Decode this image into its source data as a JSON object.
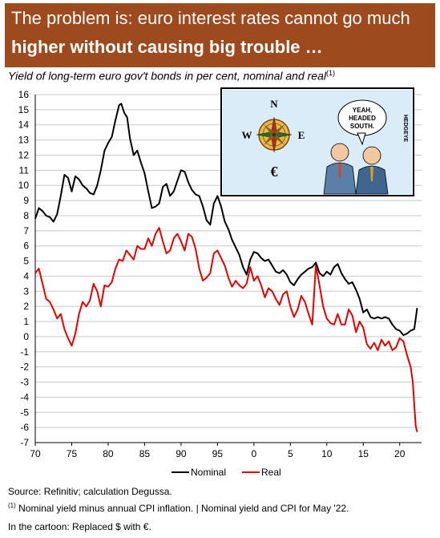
{
  "header": {
    "line1": "The problem is: euro interest rates cannot go much",
    "line2": "higher without causing big trouble …"
  },
  "subtitle": {
    "text": "Yield of long-term euro gov't bonds in per cent, nominal and real",
    "footnote_marker": "(1)"
  },
  "cartoon": {
    "compass_n": "N",
    "compass_e": "E",
    "compass_w": "W",
    "euro_symbol": "€",
    "speech": [
      "YEAH,",
      "HEADED",
      "SOUTH."
    ],
    "signature": "HEDGEYE"
  },
  "legend": {
    "nominal": "Nominal",
    "real": "Real"
  },
  "footer": {
    "source": "Source: Refinitiv; calculation Degussa.",
    "note_marker": "(1)",
    "note": "Nominal yield minus annual CPI inflation. | Nominal yield and CPI for May '22.",
    "cartoon_note": "In the cartoon: Replaced $ with €."
  },
  "colors": {
    "banner": "#9c4a1e",
    "nominal": "#000000",
    "real": "#e00000",
    "grid": "#c8c8c8"
  },
  "chart_data": {
    "type": "line",
    "title": "Yield of long-term euro gov't bonds in per cent, nominal and real",
    "xlabel": "",
    "ylabel": "",
    "xlim": [
      1970,
      2023
    ],
    "ylim": [
      -7,
      16
    ],
    "x_ticks": [
      70,
      75,
      80,
      85,
      90,
      95,
      0,
      5,
      10,
      15,
      20
    ],
    "y_ticks": [
      16,
      15,
      14,
      13,
      12,
      11,
      10,
      9,
      8,
      7,
      6,
      5,
      4,
      3,
      2,
      1,
      0,
      -1,
      -2,
      -3,
      -4,
      -5,
      -6,
      -7
    ],
    "grid": true,
    "legend_position": "bottom",
    "series": [
      {
        "name": "Nominal",
        "x": [
          1970.0,
          1970.5,
          1971.0,
          1971.5,
          1972.0,
          1972.5,
          1973.0,
          1973.5,
          1974.0,
          1974.5,
          1975.0,
          1975.5,
          1976.0,
          1976.5,
          1977.0,
          1977.5,
          1978.0,
          1978.5,
          1979.0,
          1979.5,
          1980.0,
          1980.5,
          1981.0,
          1981.5,
          1981.8,
          1982.2,
          1982.6,
          1983.0,
          1983.5,
          1984.0,
          1984.5,
          1985.0,
          1985.5,
          1986.0,
          1986.5,
          1987.0,
          1987.5,
          1988.0,
          1988.5,
          1989.0,
          1989.5,
          1990.0,
          1990.5,
          1991.0,
          1991.5,
          1992.0,
          1992.5,
          1993.0,
          1993.5,
          1994.0,
          1994.5,
          1995.0,
          1995.5,
          1996.0,
          1996.5,
          1997.0,
          1997.5,
          1998.0,
          1998.5,
          1999.0,
          1999.5,
          2000.0,
          2000.5,
          2001.0,
          2001.5,
          2002.0,
          2002.5,
          2003.0,
          2003.5,
          2004.0,
          2004.5,
          2005.0,
          2005.5,
          2006.0,
          2006.5,
          2007.0,
          2007.5,
          2008.0,
          2008.5,
          2009.0,
          2009.5,
          2010.0,
          2010.5,
          2011.0,
          2011.5,
          2012.0,
          2012.5,
          2013.0,
          2013.5,
          2014.0,
          2014.5,
          2015.0,
          2015.5,
          2016.0,
          2016.5,
          2017.0,
          2017.5,
          2018.0,
          2018.5,
          2019.0,
          2019.5,
          2020.0,
          2020.5,
          2021.0,
          2021.5,
          2022.0,
          2022.4
        ],
        "values": [
          7.8,
          8.5,
          8.3,
          8.0,
          7.9,
          7.6,
          8.1,
          9.3,
          10.7,
          10.5,
          9.6,
          10.6,
          10.4,
          10.0,
          9.8,
          9.5,
          9.4,
          10.0,
          11.0,
          12.3,
          12.8,
          13.2,
          14.3,
          15.3,
          15.4,
          14.8,
          14.5,
          13.1,
          12.0,
          12.3,
          11.5,
          10.8,
          9.6,
          8.5,
          8.6,
          8.8,
          9.9,
          10.1,
          9.3,
          9.6,
          10.3,
          11.0,
          10.9,
          10.2,
          9.7,
          9.4,
          9.3,
          8.6,
          7.7,
          7.4,
          8.8,
          9.3,
          8.6,
          7.6,
          7.1,
          6.4,
          5.9,
          5.4,
          4.6,
          4.1,
          5.1,
          5.6,
          5.5,
          5.2,
          5.0,
          5.1,
          4.7,
          4.3,
          4.2,
          4.4,
          4.1,
          3.6,
          3.4,
          3.8,
          4.1,
          4.3,
          4.5,
          4.6,
          4.9,
          4.2,
          4.0,
          4.3,
          4.1,
          4.6,
          4.8,
          4.2,
          3.8,
          3.5,
          3.6,
          3.1,
          2.5,
          1.6,
          1.8,
          1.3,
          1.2,
          1.3,
          1.2,
          1.3,
          1.2,
          0.8,
          0.5,
          0.4,
          0.1,
          0.2,
          0.4,
          0.5,
          1.9
        ]
      },
      {
        "name": "Real",
        "x": [
          1970.0,
          1970.5,
          1971.0,
          1971.5,
          1972.0,
          1972.5,
          1973.0,
          1973.5,
          1974.0,
          1974.5,
          1975.0,
          1975.5,
          1976.0,
          1976.5,
          1977.0,
          1977.5,
          1978.0,
          1978.5,
          1979.0,
          1979.5,
          1980.0,
          1980.5,
          1981.0,
          1981.5,
          1982.0,
          1982.5,
          1983.0,
          1983.5,
          1984.0,
          1984.5,
          1985.0,
          1985.5,
          1986.0,
          1986.5,
          1987.0,
          1987.5,
          1988.0,
          1988.5,
          1989.0,
          1989.5,
          1990.0,
          1990.5,
          1991.0,
          1991.5,
          1992.0,
          1992.5,
          1993.0,
          1993.5,
          1994.0,
          1994.5,
          1995.0,
          1995.5,
          1996.0,
          1996.5,
          1997.0,
          1997.5,
          1998.0,
          1998.5,
          1999.0,
          1999.5,
          2000.0,
          2000.5,
          2001.0,
          2001.5,
          2002.0,
          2002.5,
          2003.0,
          2003.5,
          2004.0,
          2004.5,
          2005.0,
          2005.5,
          2006.0,
          2006.5,
          2007.0,
          2007.5,
          2008.0,
          2008.5,
          2009.0,
          2009.5,
          2010.0,
          2010.5,
          2011.0,
          2011.5,
          2012.0,
          2012.5,
          2013.0,
          2013.5,
          2014.0,
          2014.5,
          2015.0,
          2015.5,
          2016.0,
          2016.5,
          2017.0,
          2017.5,
          2018.0,
          2018.5,
          2019.0,
          2019.5,
          2020.0,
          2020.5,
          2021.0,
          2021.5,
          2021.8,
          2022.0,
          2022.2,
          2022.4
        ],
        "values": [
          4.2,
          4.5,
          3.5,
          2.5,
          2.3,
          1.8,
          1.2,
          1.5,
          0.5,
          -0.1,
          -0.6,
          0.2,
          1.5,
          2.3,
          2.0,
          2.4,
          3.5,
          3.0,
          2.0,
          3.4,
          3.3,
          3.6,
          4.5,
          5.1,
          5.0,
          5.7,
          5.4,
          5.1,
          6.0,
          5.8,
          5.8,
          6.5,
          6.0,
          6.8,
          7.2,
          6.3,
          5.5,
          5.7,
          6.5,
          6.8,
          6.3,
          5.7,
          6.8,
          6.6,
          5.8,
          4.5,
          3.7,
          3.9,
          4.2,
          5.5,
          5.7,
          5.2,
          4.7,
          3.9,
          3.3,
          3.7,
          3.4,
          3.2,
          3.5,
          4.6,
          3.7,
          4.0,
          3.4,
          2.6,
          3.2,
          3.0,
          2.5,
          2.1,
          2.8,
          3.0,
          2.0,
          1.3,
          1.8,
          2.7,
          2.3,
          1.5,
          0.8,
          4.7,
          3.4,
          2.0,
          1.2,
          0.9,
          0.8,
          1.5,
          0.8,
          0.8,
          1.8,
          1.4,
          0.3,
          1.0,
          0.6,
          -0.5,
          -0.8,
          -0.4,
          -0.9,
          -0.2,
          -0.6,
          -0.3,
          -0.9,
          -0.7,
          -0.1,
          -0.3,
          -1.2,
          -2.0,
          -3.0,
          -4.5,
          -5.9,
          -6.3
        ]
      }
    ]
  }
}
